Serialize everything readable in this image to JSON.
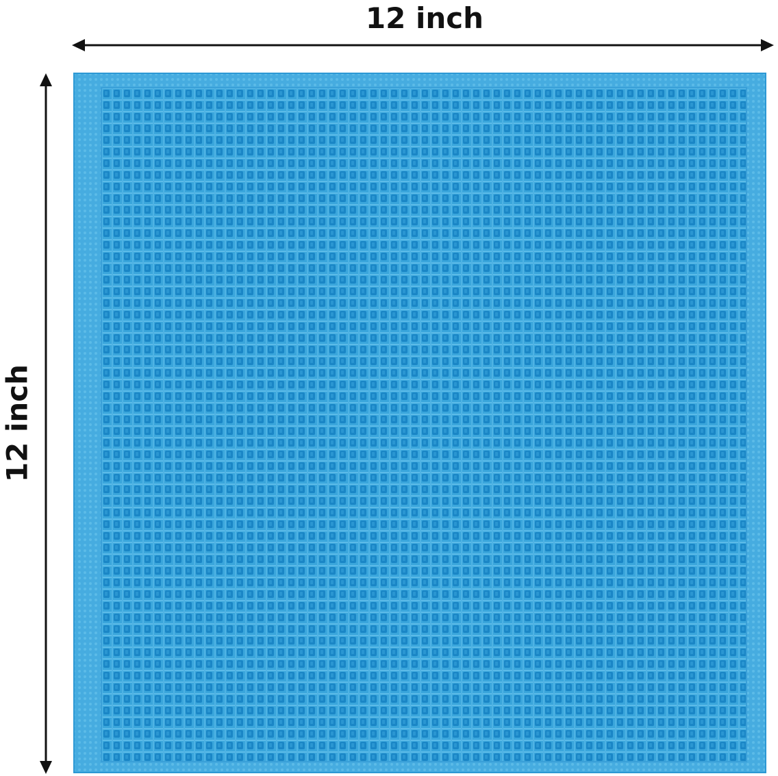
{
  "dimensions": {
    "width_label": "12 inch",
    "height_label": "12 inch"
  },
  "product": {
    "description_icon": "waffle-weave-cloth",
    "colors": {
      "cloth": "#3aa6dc",
      "border": "#4db1e2",
      "weave_hole": "#1a86c6",
      "weave_highlight": "#5cbbe8",
      "arrow": "#111111"
    }
  }
}
